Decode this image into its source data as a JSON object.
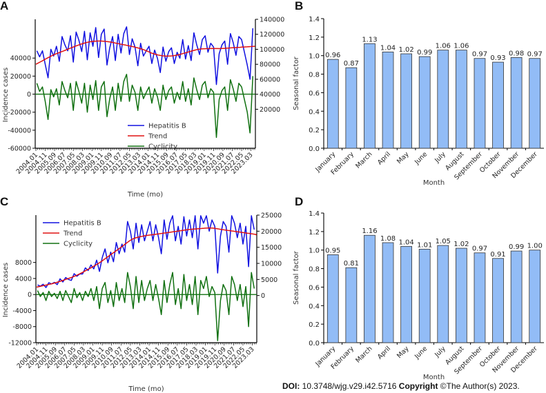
{
  "chart_data": [
    {
      "panel": "A",
      "type": "line",
      "xlabel": "Time (mo)",
      "ylabel": "Incidence cases",
      "frequency": "quarterly",
      "start": "2004.01",
      "x_tick_labels": [
        "2004.01",
        "2004.11",
        "2005.09",
        "2006.07",
        "2007.05",
        "2008.03",
        "2009.01",
        "2009.11",
        "2010.09",
        "2011.07",
        "2012.05",
        "2013.03",
        "2014.01",
        "2014.11",
        "2015.09",
        "2016.07",
        "2017.05",
        "2018.03",
        "2019.01",
        "2019.11",
        "2020.09",
        "2021.07",
        "2022.05",
        "2023.03"
      ],
      "left_axis": {
        "ticks": [
          40000,
          20000,
          0,
          -20000,
          -40000,
          -60000
        ],
        "labels": [
          "40000",
          "20000",
          "0",
          "-20000",
          "-40000",
          "-60000"
        ],
        "range": [
          -60000,
          83000
        ]
      },
      "right_axis": {
        "ticks": [
          140000,
          120000,
          100000,
          80000,
          60000,
          40000,
          20000
        ],
        "labels": [
          "140000",
          "120000",
          "100000",
          "80000",
          "60000",
          "40000",
          "20000"
        ],
        "range": [
          -32000,
          140000
        ]
      },
      "legend": {
        "placement": "bottom-center",
        "entries": [
          "Hepatitis B",
          "Trend",
          "Cyclicity"
        ]
      },
      "series": [
        {
          "name": "Hepatitis B",
          "axis": "right",
          "color": "#1010e0",
          "values": [
            98000,
            90000,
            98000,
            80000,
            62000,
            100000,
            91000,
            104000,
            84000,
            117000,
            106000,
            98000,
            118000,
            83000,
            123000,
            112000,
            97000,
            124000,
            86000,
            122000,
            104000,
            129000,
            89000,
            120000,
            127000,
            79000,
            102000,
            117000,
            85000,
            120000,
            95000,
            121000,
            130000,
            93000,
            114000,
            103000,
            78000,
            108000,
            91000,
            98000,
            104000,
            81000,
            99000,
            88000,
            69000,
            103000,
            84000,
            97000,
            102000,
            81000,
            96000,
            88000,
            113000,
            87000,
            105000,
            85000,
            122000,
            106000,
            93000,
            113000,
            118000,
            96000,
            108000,
            103000,
            53000,
            94000,
            106000,
            111000,
            80000,
            121000,
            109000,
            92000,
            117000,
            113000,
            96000,
            79000,
            60000,
            128000
          ]
        },
        {
          "name": "Trend",
          "axis": "right",
          "color": "#e01010",
          "frequency": "yearly",
          "values": [
            84000,
            92000,
            98000,
            104000,
            109000,
            111000,
            110000,
            107000,
            104000,
            100000,
            94000,
            91000,
            92000,
            96000,
            100000,
            101000,
            101000,
            102000,
            103000,
            104000
          ]
        },
        {
          "name": "Cyclicity",
          "axis": "left",
          "color": "#107010",
          "values": [
            12000,
            3000,
            8000,
            -8000,
            -28000,
            5000,
            -3000,
            6000,
            -12000,
            14000,
            4000,
            -4000,
            12000,
            -18000,
            14000,
            3000,
            -10000,
            12000,
            -20000,
            10000,
            -6000,
            15000,
            -18000,
            8000,
            14000,
            -25000,
            -5000,
            8000,
            -18000,
            12000,
            -8000,
            14000,
            22000,
            -8000,
            10000,
            2000,
            -18000,
            8000,
            -5000,
            2000,
            8000,
            -10000,
            6000,
            -3000,
            -18000,
            10000,
            -6000,
            4000,
            8000,
            -10000,
            2000,
            -6000,
            14000,
            -8000,
            6000,
            -12000,
            18000,
            5000,
            -6000,
            10000,
            14000,
            -4000,
            6000,
            2000,
            -48000,
            -6000,
            4000,
            8000,
            -18000,
            16000,
            6000,
            -8000,
            12000,
            8000,
            -6000,
            -20000,
            -43000,
            20000
          ]
        }
      ]
    },
    {
      "panel": "B",
      "type": "bar",
      "xlabel": "Month",
      "ylabel": "Seasonal factor",
      "ylim": [
        0,
        1.4
      ],
      "y_tick_labels": [
        "0.0",
        "0.2",
        "0.4",
        "0.6",
        "0.8",
        "1.0",
        "1.2",
        "1.4"
      ],
      "categories": [
        "January",
        "February",
        "March",
        "April",
        "May",
        "June",
        "July",
        "August",
        "September",
        "October",
        "November",
        "December"
      ],
      "values": [
        0.96,
        0.87,
        1.13,
        1.04,
        1.02,
        0.99,
        1.06,
        1.06,
        0.97,
        0.93,
        0.98,
        0.97
      ],
      "value_labels": [
        "0.96",
        "0.87",
        "1.13",
        "1.04",
        "1.02",
        "0.99",
        "1.06",
        "1.06",
        "0.97",
        "0.93",
        "0.98",
        "0.97"
      ],
      "bar_color": "#92bcf6"
    },
    {
      "panel": "C",
      "type": "line",
      "xlabel": "Time (mo)",
      "ylabel": "Incidence cases",
      "frequency": "quarterly",
      "start": "2004.01",
      "x_tick_labels": [
        "2004.01",
        "2004.11",
        "2005.09",
        "2006.07",
        "2007.05",
        "2008.03",
        "2009.01",
        "2009.11",
        "2010.09",
        "2011.07",
        "2012.05",
        "2013.03",
        "2014.01",
        "2014.11",
        "2015.09",
        "2016.07",
        "2017.05",
        "2018.03",
        "2019.01",
        "2019.11",
        "2020.09",
        "2021.07",
        "2022.05",
        "2023.03"
      ],
      "left_axis": {
        "ticks": [
          8000,
          4000,
          0,
          -4000,
          -8000,
          -12000
        ],
        "labels": [
          "8000",
          "4000",
          "0",
          "-4000",
          "-8000",
          "-12000"
        ],
        "range": [
          -12000,
          19800
        ]
      },
      "right_axis": {
        "ticks": [
          25000,
          20000,
          15000,
          10000,
          5000,
          0
        ],
        "labels": [
          "25000",
          "20000",
          "15000",
          "10000",
          "5000",
          "0"
        ],
        "range": [
          -14650,
          25000
        ]
      },
      "legend": {
        "placement": "top-left",
        "entries": [
          "Hepatitis B",
          "Trend",
          "Cyclicity"
        ]
      },
      "series": [
        {
          "name": "Hepatitis B",
          "axis": "right",
          "color": "#1010e0",
          "values": [
            3300,
            2900,
            3500,
            2500,
            4000,
            3600,
            4100,
            3400,
            5200,
            4200,
            5600,
            5000,
            4700,
            6800,
            6000,
            6700,
            6700,
            8600,
            7800,
            9500,
            8300,
            11000,
            7500,
            11800,
            14500,
            10200,
            13500,
            10500,
            16500,
            13000,
            16000,
            13500,
            23000,
            20000,
            14500,
            22500,
            16500,
            22000,
            17000,
            20000,
            23000,
            17000,
            22000,
            18000,
            13000,
            23500,
            17500,
            22500,
            24800,
            17000,
            21500,
            16000,
            24500,
            18500,
            23500,
            18000,
            24800,
            14500,
            24800,
            22500,
            24800,
            20000,
            23500,
            21500,
            7000,
            18500,
            23000,
            21500,
            13500,
            24800,
            22500,
            18000,
            22500,
            16000,
            21500,
            9000,
            24800,
            20500
          ]
        },
        {
          "name": "Trend",
          "axis": "right",
          "color": "#e01010",
          "frequency": "yearly",
          "values": [
            3000,
            3800,
            4900,
            6200,
            8000,
            10000,
            12500,
            15000,
            17500,
            18500,
            19000,
            19500,
            20000,
            20500,
            20800,
            21000,
            20500,
            20000,
            19500,
            19000
          ]
        },
        {
          "name": "Cyclicity",
          "axis": "left",
          "color": "#107010",
          "values": [
            1000,
            -500,
            500,
            -1500,
            800,
            -500,
            300,
            -1000,
            800,
            -1500,
            1000,
            -500,
            -2000,
            1500,
            -800,
            500,
            -1500,
            800,
            -500,
            1500,
            -1500,
            2000,
            -3500,
            1500,
            3000,
            -2000,
            1000,
            -3000,
            3000,
            -1500,
            1500,
            -2000,
            5500,
            2000,
            -3500,
            4500,
            -2000,
            3500,
            -1500,
            1500,
            3500,
            -1500,
            2500,
            -1000,
            -5000,
            3500,
            -2000,
            2500,
            5500,
            -2500,
            1500,
            -3500,
            5000,
            -1500,
            2500,
            -2500,
            4500,
            -5000,
            3500,
            1500,
            4500,
            -500,
            2000,
            500,
            -11500,
            -1500,
            2500,
            1000,
            -5000,
            4500,
            2500,
            -1500,
            2500,
            -3000,
            2000,
            -8000,
            5500,
            1500
          ]
        }
      ]
    },
    {
      "panel": "D",
      "type": "bar",
      "xlabel": "Month",
      "ylabel": "Seasonal factor",
      "ylim": [
        0,
        1.4
      ],
      "y_tick_labels": [
        "0.0",
        "0.2",
        "0.4",
        "0.6",
        "0.8",
        "1.0",
        "1.2",
        "1.4"
      ],
      "categories": [
        "January",
        "February",
        "March",
        "April",
        "May",
        "June",
        "July",
        "August",
        "September",
        "October",
        "November",
        "December"
      ],
      "values": [
        0.95,
        0.81,
        1.16,
        1.08,
        1.04,
        1.01,
        1.05,
        1.02,
        0.97,
        0.91,
        0.99,
        1.0
      ],
      "value_labels": [
        "0.95",
        "0.81",
        "1.16",
        "1.08",
        "1.04",
        "1.01",
        "1.05",
        "1.02",
        "0.97",
        "0.91",
        "0.99",
        "1.00"
      ],
      "bar_color": "#92bcf6"
    }
  ],
  "footer": {
    "doi_label": "DOI:",
    "doi_value": " 10.3748/wjg.v29.i42.5716 ",
    "copyright_label": "Copyright",
    "copyright_value": " ©The Author(s) 2023."
  }
}
